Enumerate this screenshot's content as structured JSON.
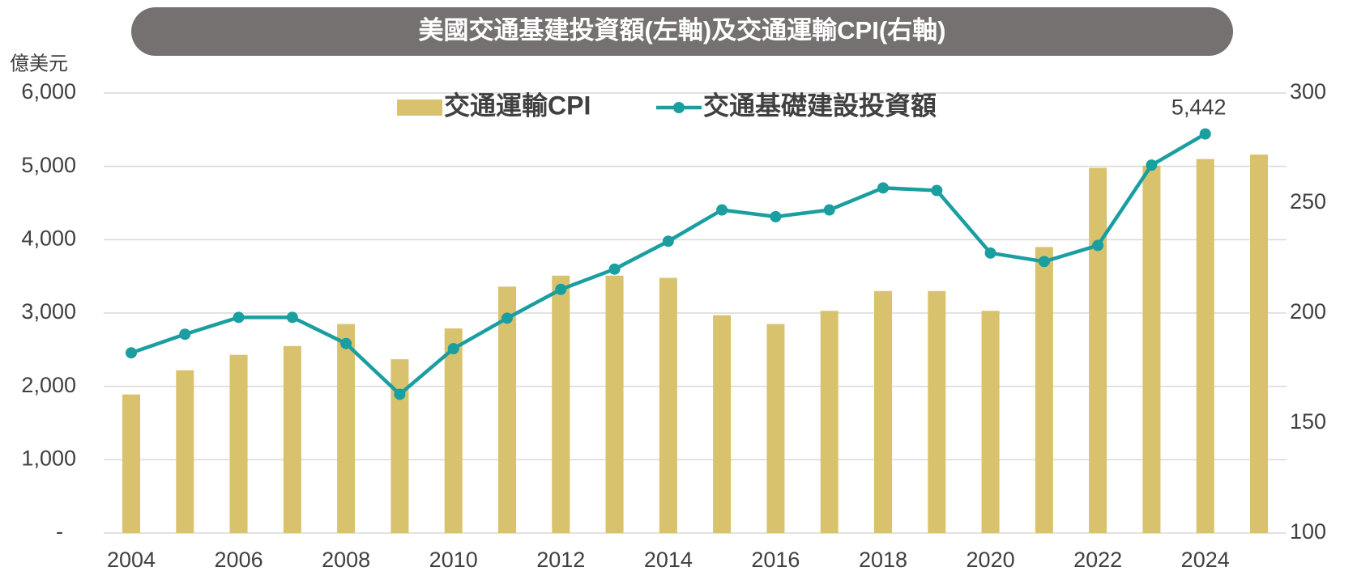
{
  "chart_data": {
    "type": "bar_line",
    "title": "美國交通基建投資額(左軸)及交通運輸CPI(右軸)",
    "y_label": "億美元",
    "categories": [
      "2004",
      null,
      "2006",
      null,
      "2008",
      null,
      "2010",
      null,
      "2012",
      null,
      "2014",
      null,
      "2016",
      null,
      "2018",
      null,
      "2020",
      null,
      "2022",
      null,
      "2024",
      null
    ],
    "series": [
      {
        "name": "交通運輸CPI",
        "type": "bar",
        "axis": "y2",
        "color": "#d9c26e",
        "values": [
          163,
          174,
          181,
          185,
          195,
          179,
          193,
          212,
          217,
          217,
          216,
          199,
          195,
          201,
          210,
          210,
          201,
          230,
          266,
          267,
          270,
          272
        ]
      },
      {
        "name": "交通基礎建設投資額",
        "type": "line",
        "axis": "y",
        "color": "#1a9ea0",
        "values": [
          2457,
          2711,
          2941,
          2941,
          2584,
          1892,
          2514,
          2930,
          3322,
          3599,
          3979,
          4406,
          4314,
          4406,
          4706,
          4671,
          3818,
          3702,
          3922,
          5017,
          5442,
          null
        ],
        "value_labels": [
          null,
          null,
          null,
          null,
          null,
          null,
          null,
          null,
          null,
          null,
          null,
          null,
          null,
          null,
          null,
          null,
          null,
          null,
          null,
          null,
          "5,442",
          null
        ]
      }
    ],
    "ylim": [
      0,
      6000
    ],
    "yticks": [
      {
        "value": 0,
        "label": "-"
      },
      {
        "value": 1000,
        "label": "1,000"
      },
      {
        "value": 2000,
        "label": "2,000"
      },
      {
        "value": 3000,
        "label": "3,000"
      },
      {
        "value": 4000,
        "label": "4,000"
      },
      {
        "value": 5000,
        "label": "5,000"
      },
      {
        "value": 6000,
        "label": "6,000"
      }
    ],
    "y2lim": [
      100,
      300
    ],
    "y2ticks": [
      100,
      150,
      200,
      250,
      300
    ],
    "grid": true,
    "legend": "top"
  }
}
